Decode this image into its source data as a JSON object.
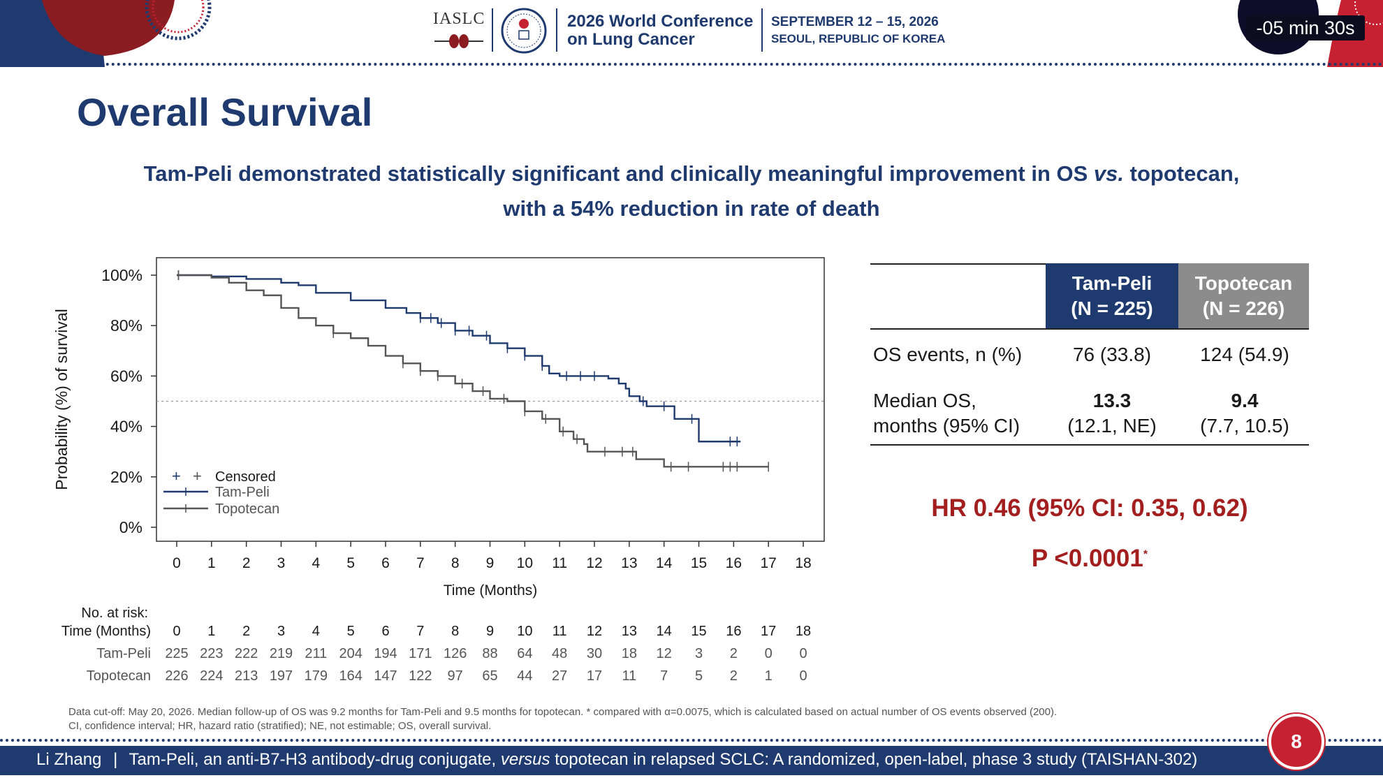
{
  "header": {
    "org": "IASLC",
    "conference_line1": "2026 World Conference",
    "conference_line2": "on Lung Cancer",
    "dates": "SEPTEMBER 12 – 15, 2026",
    "location": "SEOUL, REPUBLIC OF KOREA",
    "timer": "-05 min 30s"
  },
  "slide": {
    "title": "Overall Survival",
    "subtitle_line1": "Tam-Peli demonstrated statistically significant and clinically meaningful improvement in OS vs. topotecan,",
    "subtitle_line2": "with a 54% reduction in rate of death"
  },
  "chart_data": {
    "type": "line",
    "subtype": "kaplan-meier step",
    "ylabel": "Probability (%) of survival",
    "xlabel": "Time (Months)",
    "xlim": [
      0,
      18
    ],
    "ylim": [
      0,
      100
    ],
    "x_ticks": [
      0,
      1,
      2,
      3,
      4,
      5,
      6,
      7,
      8,
      9,
      10,
      11,
      12,
      13,
      14,
      15,
      16,
      17,
      18
    ],
    "y_ticks": [
      "0%",
      "20%",
      "40%",
      "60%",
      "80%",
      "100%"
    ],
    "y_tick_values": [
      0,
      20,
      40,
      60,
      80,
      100
    ],
    "median_reference_y": 50,
    "legend": {
      "censored": "Censored",
      "position": "bottom-left"
    },
    "series": [
      {
        "name": "Tam-Peli",
        "color": "#1f3a6e",
        "points": [
          [
            0,
            100
          ],
          [
            1,
            99.5
          ],
          [
            2,
            98.5
          ],
          [
            3,
            97
          ],
          [
            3.5,
            96
          ],
          [
            4,
            93
          ],
          [
            5,
            90
          ],
          [
            6,
            87
          ],
          [
            6.6,
            85
          ],
          [
            7,
            83
          ],
          [
            7.5,
            81
          ],
          [
            8,
            78
          ],
          [
            8.5,
            76
          ],
          [
            9,
            73
          ],
          [
            9.5,
            71
          ],
          [
            10,
            68
          ],
          [
            10.5,
            64
          ],
          [
            10.7,
            61
          ],
          [
            11,
            60
          ],
          [
            12,
            60
          ],
          [
            12.4,
            59
          ],
          [
            12.7,
            57
          ],
          [
            12.9,
            55
          ],
          [
            13,
            52
          ],
          [
            13.3,
            50
          ],
          [
            13.5,
            48
          ],
          [
            14,
            48
          ],
          [
            14.3,
            48
          ],
          [
            14.3,
            43
          ],
          [
            15,
            43
          ],
          [
            15,
            34
          ],
          [
            16.2,
            34
          ]
        ],
        "censored_x": [
          0.05,
          7,
          7.3,
          7.6,
          8,
          8.4,
          8.9,
          9.5,
          10,
          10.5,
          11.2,
          11.6,
          12,
          13.4,
          14,
          14.8,
          15.9,
          16.1
        ]
      },
      {
        "name": "Topotecan",
        "color": "#555555",
        "points": [
          [
            0,
            100
          ],
          [
            1,
            99
          ],
          [
            1.5,
            97
          ],
          [
            2,
            94
          ],
          [
            2.5,
            92
          ],
          [
            3,
            87
          ],
          [
            3.5,
            83
          ],
          [
            4,
            80
          ],
          [
            4.5,
            77
          ],
          [
            5,
            75
          ],
          [
            5.5,
            72
          ],
          [
            6,
            68
          ],
          [
            6.5,
            65
          ],
          [
            7,
            62
          ],
          [
            7.5,
            60
          ],
          [
            8,
            57
          ],
          [
            8.5,
            54
          ],
          [
            9,
            51
          ],
          [
            9.5,
            50
          ],
          [
            10,
            46
          ],
          [
            10.5,
            43
          ],
          [
            11,
            38
          ],
          [
            11.4,
            35
          ],
          [
            11.7,
            33
          ],
          [
            11.8,
            30
          ],
          [
            13.2,
            30
          ],
          [
            13.2,
            27
          ],
          [
            14,
            27
          ],
          [
            14,
            24
          ],
          [
            17,
            24
          ]
        ],
        "censored_x": [
          0.05,
          4.5,
          6.5,
          7,
          7.5,
          8.2,
          8.8,
          9.4,
          10,
          10.6,
          11.1,
          11.5,
          12.3,
          12.8,
          13.1,
          14.2,
          14.7,
          15.7,
          15.9,
          16.1,
          17
        ]
      }
    ],
    "at_risk": {
      "title": "No. at risk:",
      "time_label": "Time (Months)",
      "times": [
        "0",
        "1",
        "2",
        "3",
        "4",
        "5",
        "6",
        "7",
        "8",
        "9",
        "10",
        "11",
        "12",
        "13",
        "14",
        "15",
        "16",
        "17",
        "18"
      ],
      "rows": [
        {
          "label": "Tam-Peli",
          "values": [
            "225",
            "223",
            "222",
            "219",
            "211",
            "204",
            "194",
            "171",
            "126",
            "88",
            "64",
            "48",
            "30",
            "18",
            "12",
            "3",
            "2",
            "0",
            "0"
          ]
        },
        {
          "label": "Topotecan",
          "values": [
            "226",
            "224",
            "213",
            "197",
            "179",
            "164",
            "147",
            "122",
            "97",
            "65",
            "44",
            "27",
            "17",
            "11",
            "7",
            "5",
            "2",
            "1",
            "0"
          ]
        }
      ]
    }
  },
  "table": {
    "col1_name": "Tam-Peli",
    "col1_n": "(N = 225)",
    "col2_name": "Topotecan",
    "col2_n": "(N = 226)",
    "rows": [
      {
        "label": "OS events, n (%)",
        "col1": "76 (33.8)",
        "col2": "124 (54.9)"
      },
      {
        "label_line1": "Median OS,",
        "label_line2": "months (95% CI)",
        "col1_main": "13.3",
        "col1_ci": "(12.1, NE)",
        "col2_main": "9.4",
        "col2_ci": "(7.7, 10.5)"
      }
    ]
  },
  "stats": {
    "hr": "HR 0.46 (95% CI: 0.35, 0.62)",
    "p": "P <0.0001",
    "p_mark": "*"
  },
  "footnote": {
    "line1": "Data cut-off: May 20, 2026. Median follow-up of OS was 9.2 months for Tam-Peli and 9.5 months for topotecan. * compared with α=0.0075, which is calculated based on actual number of OS events observed (200).",
    "line2": "CI, confidence interval; HR, hazard ratio (stratified); NE, not estimable; OS, overall survival."
  },
  "footer": {
    "presenter": "Li Zhang",
    "separator": "|",
    "text_a": "Tam-Peli, an anti-B7-H3 antibody-drug conjugate,",
    "text_versus": "versus",
    "text_b": "topotecan in relapsed SCLC: A randomized, open-label, phase 3 study (TAISHAN-302)",
    "page": "8"
  },
  "colors": {
    "navy": "#1f3a6e",
    "gray": "#8c8c8c",
    "red": "#a31f1f",
    "badge": "#c62130"
  }
}
